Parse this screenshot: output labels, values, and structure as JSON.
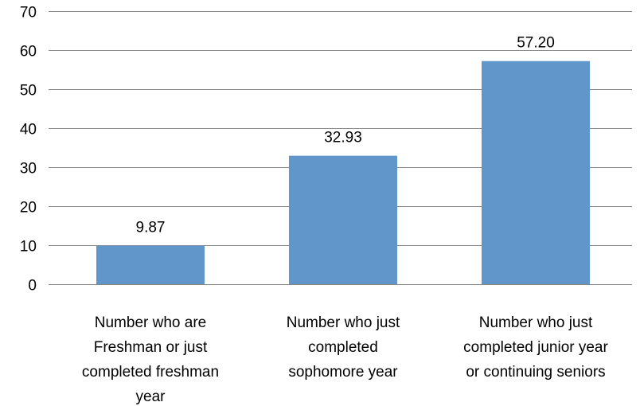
{
  "chart_data": {
    "type": "bar",
    "categories": [
      [
        "Number who are",
        "Freshman or just",
        "completed freshman",
        "year"
      ],
      [
        "Number who just",
        "completed",
        "sophomore year"
      ],
      [
        "Number who just",
        "completed junior year",
        "or continuing seniors"
      ]
    ],
    "values": [
      9.87,
      32.93,
      57.2
    ],
    "value_labels": [
      "9.87",
      "32.93",
      "57.20"
    ],
    "y_ticks": [
      "0",
      "10",
      "20",
      "30",
      "40",
      "50",
      "60",
      "70"
    ],
    "ylim": [
      0,
      70
    ],
    "grid": true,
    "bar_color": "#6096c9",
    "grid_color": "#868686",
    "title": "",
    "xlabel": "",
    "ylabel": ""
  }
}
